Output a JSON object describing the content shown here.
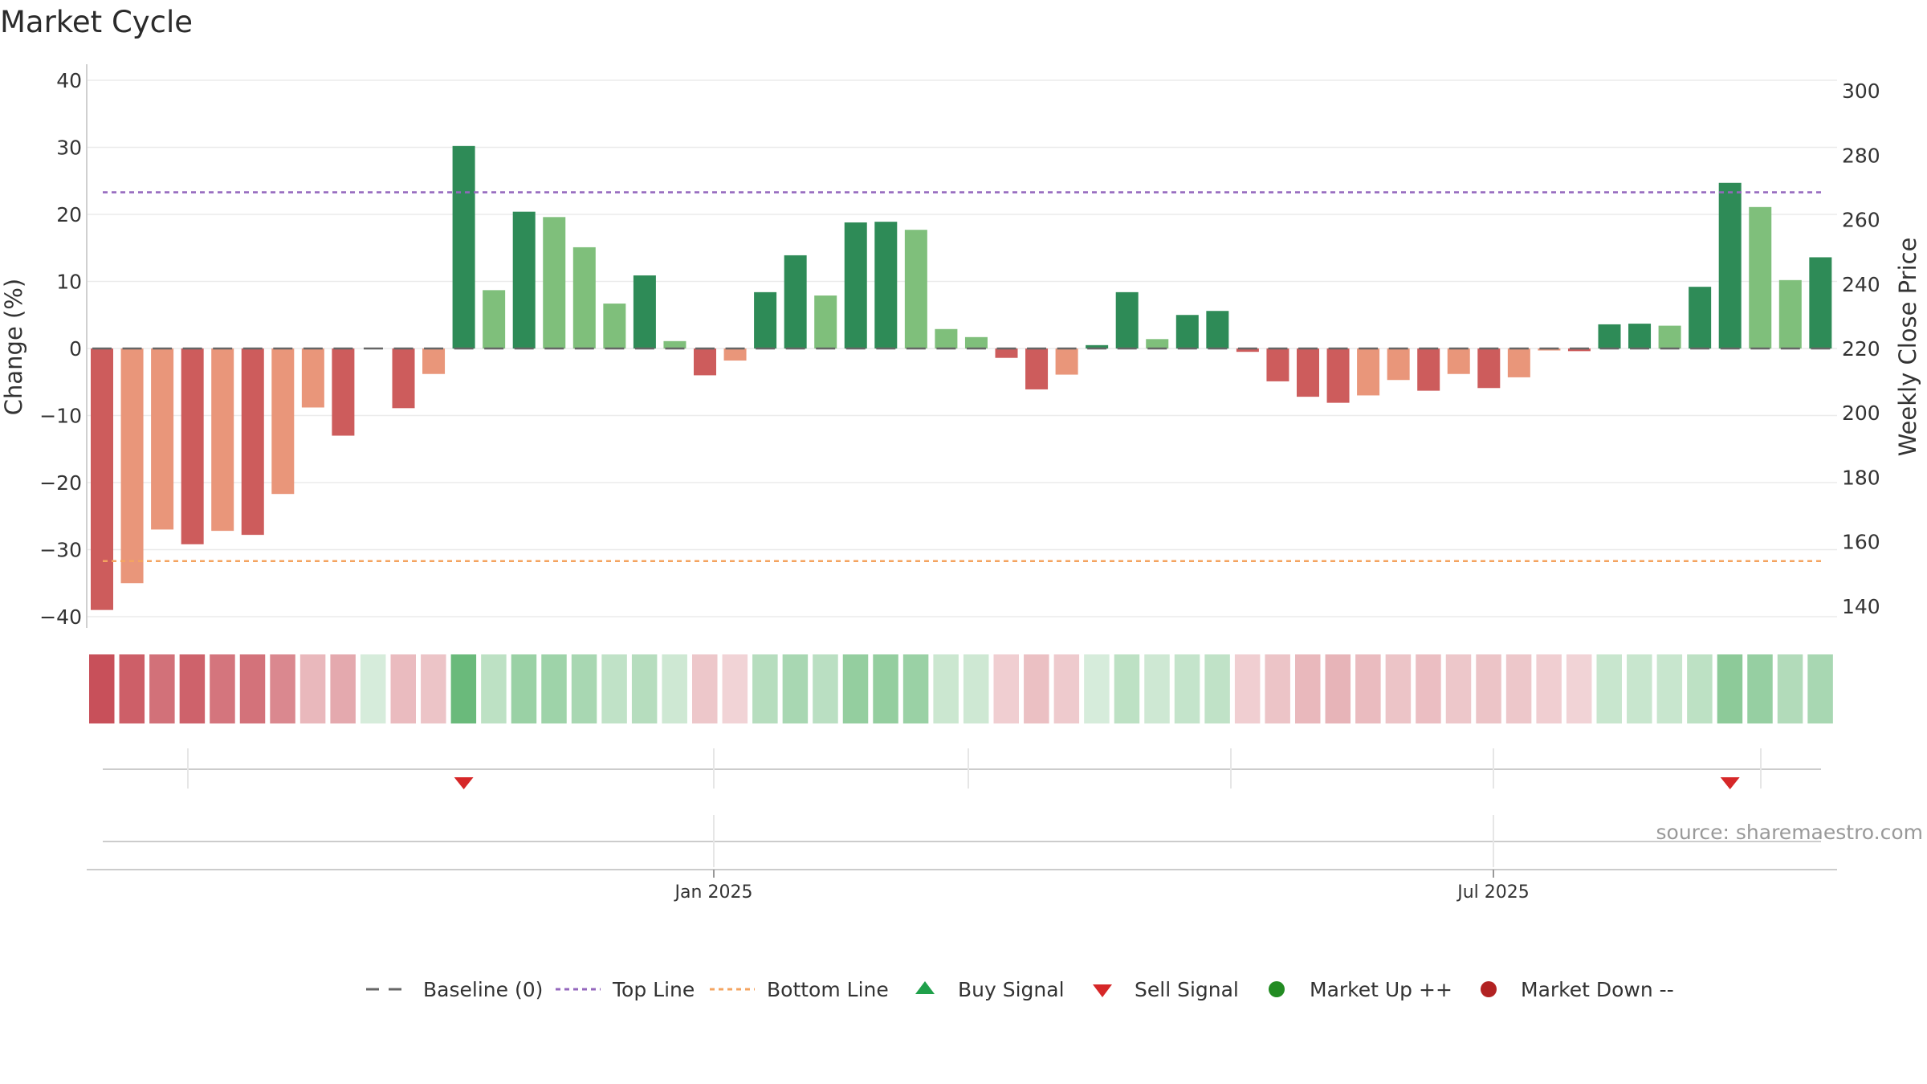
{
  "chart_data": {
    "type": "bar",
    "title": "Market Cycle",
    "ylabel": "Change (%)",
    "y2label": "Weekly Close Price",
    "ylim": [
      -42,
      42
    ],
    "y2lim": [
      135,
      302
    ],
    "yticks": [
      40,
      30,
      20,
      10,
      0,
      -10,
      -20,
      -30,
      -40
    ],
    "y2ticks": [
      300,
      280,
      260,
      240,
      220,
      200,
      180,
      160,
      140
    ],
    "yticks_labels": [
      "40",
      "30",
      "20",
      "10",
      "0",
      "−10",
      "−20",
      "−30",
      "−40"
    ],
    "y2ticks_labels": [
      "300",
      "280",
      "260",
      "240",
      "220",
      "200",
      "180",
      "160",
      "140"
    ],
    "top_line": 23.3,
    "bottom_line": -31.7,
    "baseline": 0,
    "values": [
      -39,
      -35,
      -27,
      -29.2,
      -27.2,
      -27.8,
      -21.7,
      -8.8,
      -13,
      0,
      -8.9,
      -3.8,
      30.2,
      8.7,
      20.4,
      19.6,
      15.1,
      6.7,
      10.9,
      1.1,
      -4,
      -1.8,
      8.4,
      13.9,
      7.9,
      18.8,
      18.9,
      17.7,
      2.9,
      1.7,
      -1.4,
      -6.1,
      -3.9,
      0.5,
      8.4,
      1.4,
      5,
      5.6,
      -0.5,
      -4.9,
      -7.2,
      -8.1,
      -7,
      -4.7,
      -6.3,
      -3.8,
      -5.9,
      -4.3,
      -0.3,
      -0.4,
      3.6,
      3.7,
      3.4,
      9.2,
      24.7,
      21.1,
      10.2,
      13.6
    ],
    "shades": [
      "dark",
      "light",
      "light",
      "dark",
      "light",
      "dark",
      "light",
      "light",
      "dark",
      "light",
      "dark",
      "light",
      "dark",
      "light",
      "dark",
      "light",
      "light",
      "light",
      "dark",
      "light",
      "dark",
      "light",
      "dark",
      "dark",
      "light",
      "dark",
      "dark",
      "light",
      "light",
      "light",
      "dark",
      "dark",
      "light",
      "dark",
      "dark",
      "light",
      "dark",
      "dark",
      "dark",
      "dark",
      "dark",
      "dark",
      "light",
      "light",
      "dark",
      "light",
      "dark",
      "light",
      "light",
      "dark",
      "dark",
      "dark",
      "light",
      "dark",
      "dark",
      "light",
      "light",
      "dark"
    ],
    "heat": [
      1,
      0.9,
      0.78,
      0.88,
      0.75,
      0.77,
      0.62,
      0.3,
      0.4,
      0.12,
      0.28,
      0.22,
      0.9,
      0.3,
      0.55,
      0.52,
      0.45,
      0.28,
      0.35,
      0.18,
      0.2,
      0.12,
      0.35,
      0.45,
      0.32,
      0.6,
      0.6,
      0.55,
      0.2,
      0.18,
      0.15,
      0.25,
      0.18,
      0.12,
      0.3,
      0.18,
      0.25,
      0.28,
      0.15,
      0.22,
      0.3,
      0.33,
      0.28,
      0.22,
      0.26,
      0.2,
      0.22,
      0.2,
      0.15,
      0.12,
      0.22,
      0.22,
      0.22,
      0.3,
      0.65,
      0.58,
      0.38,
      0.45
    ],
    "sell_signals": [
      12,
      54
    ],
    "xticks": [
      "Jan 2025",
      "Jul 2025"
    ],
    "legend": [
      "Baseline (0)",
      "Top Line",
      "Bottom Line",
      "Buy Signal",
      "Sell Signal",
      "Market Up ++",
      "Market Down --"
    ],
    "legend_placement": "bottom-center",
    "grid": true,
    "source": "source: sharemaestro.com",
    "colors": {
      "up_dark": "#2e8b57",
      "up_light": "#7fbf7b",
      "down_dark": "#cd5c5c",
      "down_light": "#e9967a",
      "top_line": "#9467bd",
      "bottom_line": "#f4a460",
      "baseline": "#666666",
      "buy": "#1fa04a",
      "sell": "#d62728",
      "market_up": "#228b22",
      "market_down": "#b22222",
      "heat_up": "#5cb46e",
      "heat_down": "#c8505a"
    }
  }
}
